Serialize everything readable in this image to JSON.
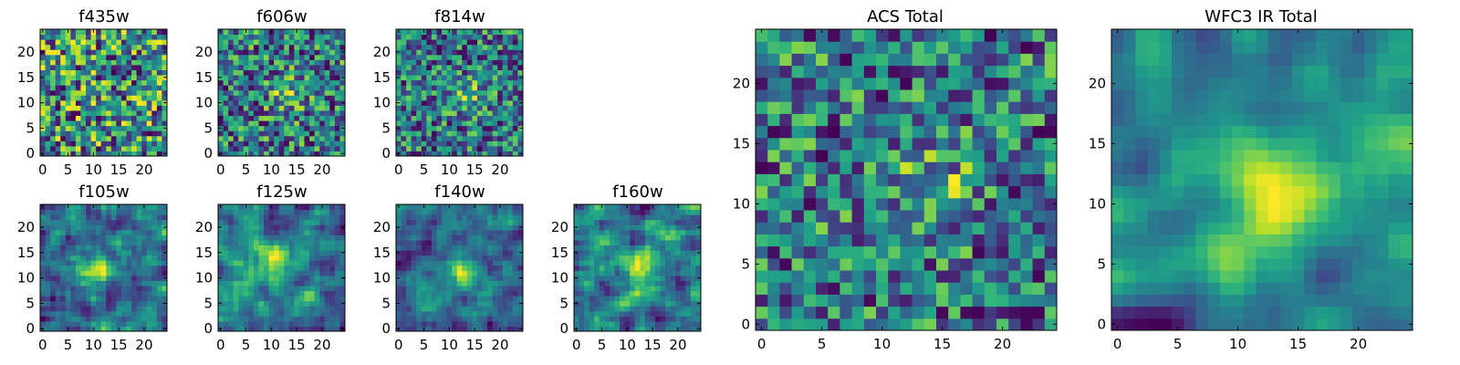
{
  "chart_data": [
    {
      "type": "heatmap",
      "title": "f435w",
      "colormap": "viridis",
      "grid_size": 25,
      "xlim": [
        0,
        24
      ],
      "ylim": [
        0,
        24
      ],
      "xticks": [
        0,
        5,
        10,
        15,
        20
      ],
      "yticks": [
        0,
        5,
        10,
        15,
        20
      ],
      "seed": 11,
      "smoothing": 0,
      "hotspot": null
    },
    {
      "type": "heatmap",
      "title": "f606w",
      "colormap": "viridis",
      "grid_size": 25,
      "xlim": [
        0,
        24
      ],
      "ylim": [
        0,
        24
      ],
      "xticks": [
        0,
        5,
        10,
        15,
        20
      ],
      "yticks": [
        0,
        5,
        10,
        15,
        20
      ],
      "seed": 23,
      "smoothing": 0,
      "hotspot": [
        13,
        12
      ]
    },
    {
      "type": "heatmap",
      "title": "f814w",
      "colormap": "viridis",
      "grid_size": 25,
      "xlim": [
        0,
        24
      ],
      "ylim": [
        0,
        24
      ],
      "xticks": [
        0,
        5,
        10,
        15,
        20
      ],
      "yticks": [
        0,
        5,
        10,
        15,
        20
      ],
      "seed": 37,
      "smoothing": 0,
      "hotspot": [
        14,
        11
      ]
    },
    {
      "type": "heatmap",
      "title": "f105w",
      "colormap": "viridis",
      "grid_size": 25,
      "xlim": [
        0,
        24
      ],
      "ylim": [
        0,
        24
      ],
      "xticks": [
        0,
        5,
        10,
        15,
        20
      ],
      "yticks": [
        0,
        5,
        10,
        15,
        20
      ],
      "seed": 41,
      "smoothing": 1,
      "hotspot": [
        11,
        12
      ]
    },
    {
      "type": "heatmap",
      "title": "f125w",
      "colormap": "viridis",
      "grid_size": 25,
      "xlim": [
        0,
        24
      ],
      "ylim": [
        0,
        24
      ],
      "xticks": [
        0,
        5,
        10,
        15,
        20
      ],
      "yticks": [
        0,
        5,
        10,
        15,
        20
      ],
      "seed": 53,
      "smoothing": 1,
      "hotspot": [
        10,
        13
      ]
    },
    {
      "type": "heatmap",
      "title": "f140w",
      "colormap": "viridis",
      "grid_size": 25,
      "xlim": [
        0,
        24
      ],
      "ylim": [
        0,
        24
      ],
      "xticks": [
        0,
        5,
        10,
        15,
        20
      ],
      "yticks": [
        0,
        5,
        10,
        15,
        20
      ],
      "seed": 67,
      "smoothing": 1,
      "hotspot": [
        12,
        11
      ]
    },
    {
      "type": "heatmap",
      "title": "f160w",
      "colormap": "viridis",
      "grid_size": 25,
      "xlim": [
        0,
        24
      ],
      "ylim": [
        0,
        24
      ],
      "xticks": [
        0,
        5,
        10,
        15,
        20
      ],
      "yticks": [
        0,
        5,
        10,
        15,
        20
      ],
      "seed": 71,
      "smoothing": 1,
      "hotspot": [
        14,
        12
      ]
    },
    {
      "type": "heatmap",
      "title": "ACS Total",
      "colormap": "viridis",
      "grid_size": 25,
      "xlim": [
        0,
        24
      ],
      "ylim": [
        0,
        24
      ],
      "xticks": [
        0,
        5,
        10,
        15,
        20
      ],
      "yticks": [
        0,
        5,
        10,
        15,
        20
      ],
      "seed": 83,
      "smoothing": 0,
      "hotspot": [
        14,
        11
      ]
    },
    {
      "type": "heatmap",
      "title": "WFC3 IR Total",
      "colormap": "viridis",
      "grid_size": 25,
      "xlim": [
        0,
        24
      ],
      "ylim": [
        0,
        24
      ],
      "xticks": [
        0,
        5,
        10,
        15,
        20
      ],
      "yticks": [
        0,
        5,
        10,
        15,
        20
      ],
      "seed": 97,
      "smoothing": 2,
      "hotspot": [
        13,
        11
      ]
    }
  ]
}
